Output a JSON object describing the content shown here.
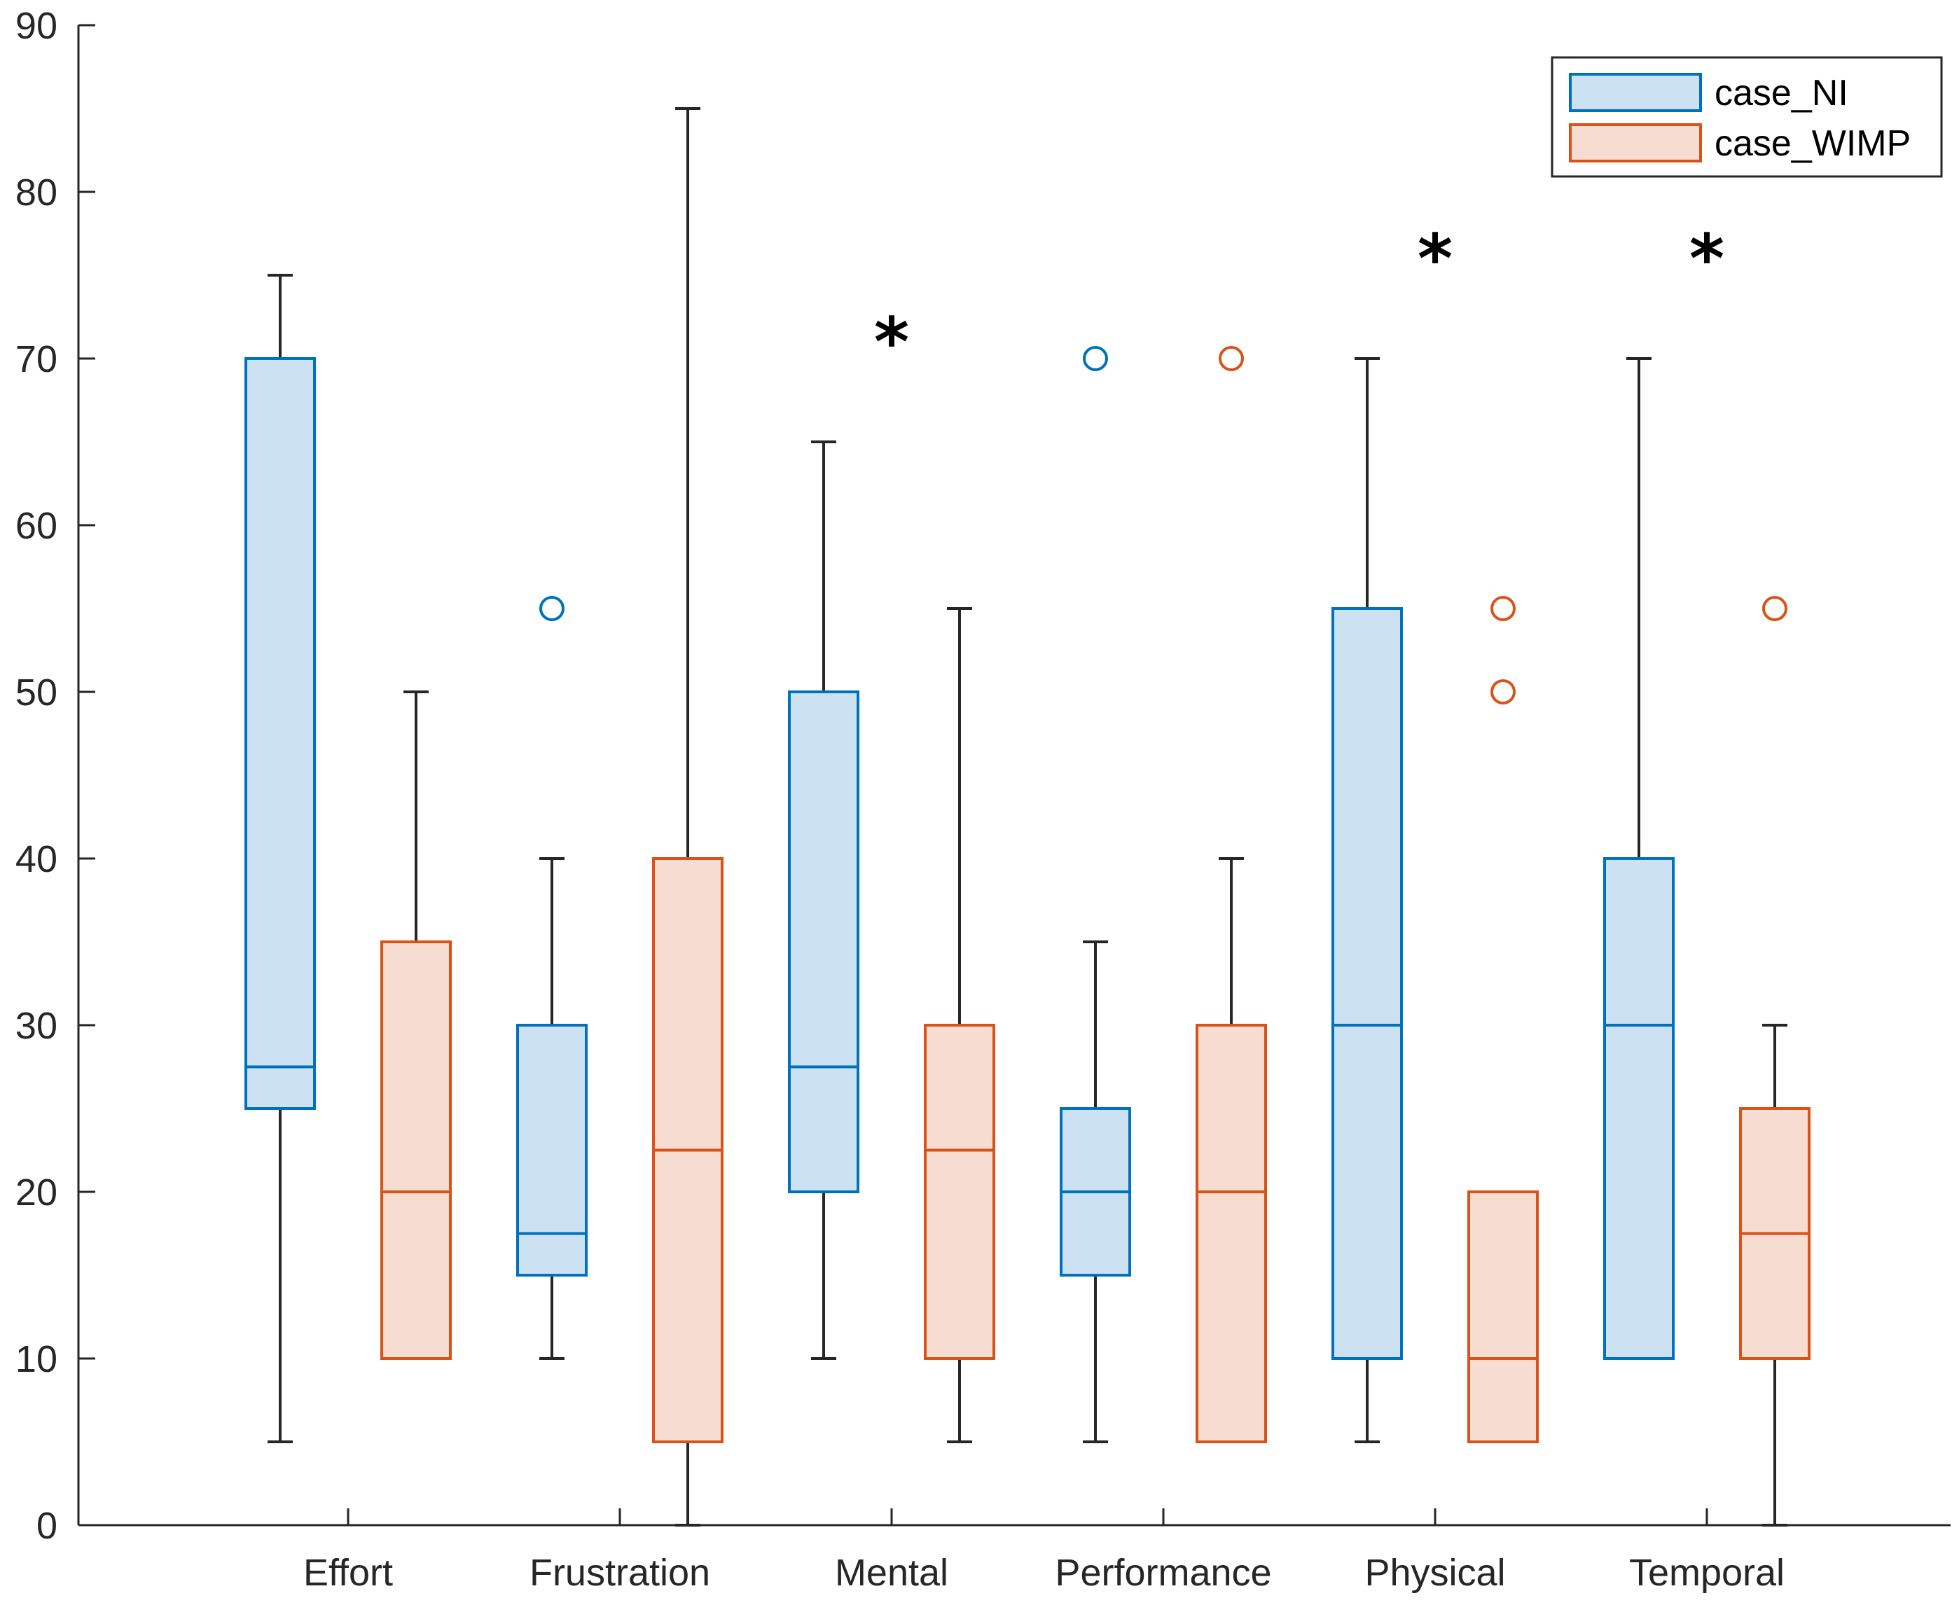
{
  "chart_data": {
    "type": "box",
    "title": "",
    "xlabel": "",
    "ylabel": "",
    "ylim": [
      0,
      90
    ],
    "yticks": [
      0,
      10,
      20,
      30,
      40,
      50,
      60,
      70,
      80,
      90
    ],
    "ytick_labels": [
      "0",
      "10",
      "20",
      "30",
      "40",
      "50",
      "60",
      "70",
      "80",
      "90"
    ],
    "categories": [
      "Effort",
      "Frustration",
      "Mental",
      "Performance",
      "Physical",
      "Temporal"
    ],
    "grid": false,
    "legend_position": "top-right",
    "series": [
      {
        "name": "case_NI",
        "edge_color": "#0072BD",
        "fill_color": "#CCE2F2",
        "boxes": [
          {
            "whisker_low": 5,
            "q1": 25,
            "median": 27.5,
            "q3": 70,
            "whisker_high": 75,
            "outliers": []
          },
          {
            "whisker_low": 10,
            "q1": 15,
            "median": 17.5,
            "q3": 30,
            "whisker_high": 40,
            "outliers": [
              55
            ]
          },
          {
            "whisker_low": 10,
            "q1": 20,
            "median": 27.5,
            "q3": 50,
            "whisker_high": 65,
            "outliers": []
          },
          {
            "whisker_low": 5,
            "q1": 15,
            "median": 20,
            "q3": 25,
            "whisker_high": 35,
            "outliers": [
              70
            ]
          },
          {
            "whisker_low": 5,
            "q1": 10,
            "median": 30,
            "q3": 55,
            "whisker_high": 70,
            "outliers": []
          },
          {
            "whisker_low": 10,
            "q1": 10,
            "median": 30,
            "q3": 40,
            "whisker_high": 70,
            "outliers": []
          }
        ]
      },
      {
        "name": "case_WIMP",
        "edge_color": "#D95319",
        "fill_color": "#F7DCD1",
        "boxes": [
          {
            "whisker_low": 10,
            "q1": 10,
            "median": 20,
            "q3": 35,
            "whisker_high": 50,
            "outliers": []
          },
          {
            "whisker_low": 0,
            "q1": 5,
            "median": 22.5,
            "q3": 40,
            "whisker_high": 85,
            "outliers": []
          },
          {
            "whisker_low": 5,
            "q1": 10,
            "median": 22.5,
            "q3": 30,
            "whisker_high": 55,
            "outliers": []
          },
          {
            "whisker_low": 5,
            "q1": 5,
            "median": 20,
            "q3": 30,
            "whisker_high": 40,
            "outliers": [
              70
            ]
          },
          {
            "whisker_low": 5,
            "q1": 5,
            "median": 10,
            "q3": 20,
            "whisker_high": 20,
            "outliers": [
              50,
              55
            ]
          },
          {
            "whisker_low": 0,
            "q1": 10,
            "median": 17.5,
            "q3": 25,
            "whisker_high": 30,
            "outliers": [
              55
            ]
          }
        ]
      }
    ],
    "annotations": [
      {
        "text": "*",
        "category": "Mental",
        "y": 71
      },
      {
        "text": "*",
        "category": "Physical",
        "y": 76
      },
      {
        "text": "*",
        "category": "Temporal",
        "y": 76
      }
    ]
  }
}
